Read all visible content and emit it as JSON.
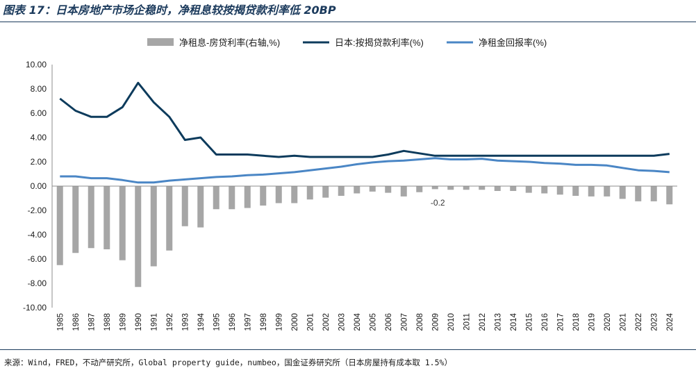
{
  "title": "图表 17：日本房地产市场企稳时，净租息较按揭贷款利率低 20BP",
  "source": "来源：Wind，FRED，不动产研究所，Global property guide，numbeo，国金证券研究所（日本房屋持有成本取 1.5%）",
  "colors": {
    "spread_bar": "#a6a6a6",
    "mortgage_line": "#0d3b5c",
    "yield_line": "#4a86c5",
    "rule": "#1b3a5c"
  },
  "chart_data": {
    "type": "bar+line",
    "categories": [
      "1985",
      "1986",
      "1987",
      "1988",
      "1989",
      "1990",
      "1991",
      "1992",
      "1993",
      "1994",
      "1995",
      "1996",
      "1997",
      "1998",
      "1999",
      "2000",
      "2001",
      "2002",
      "2003",
      "2004",
      "2005",
      "2006",
      "2007",
      "2008",
      "2009",
      "2010",
      "2011",
      "2012",
      "2013",
      "2014",
      "2015",
      "2016",
      "2017",
      "2018",
      "2019",
      "2020",
      "2021",
      "2022",
      "2023",
      "2024"
    ],
    "ylim": [
      -10,
      10
    ],
    "yticks": [
      "10.00",
      "8.00",
      "6.00",
      "4.00",
      "2.00",
      "0.00",
      "-2.00",
      "-4.00",
      "-6.00",
      "-8.00",
      "-10.00"
    ],
    "legend": [
      {
        "name": "净租息-房贷利率(右轴,%)",
        "kind": "bar"
      },
      {
        "name": "日本:按揭贷款利率(%)",
        "kind": "line"
      },
      {
        "name": "净租金回报率(%)",
        "kind": "line"
      }
    ],
    "series": [
      {
        "name": "净租息-房贷利率(右轴,%)",
        "type": "bar",
        "values": [
          -6.5,
          -5.5,
          -5.1,
          -5.2,
          -6.1,
          -8.3,
          -6.6,
          -5.3,
          -3.3,
          -3.4,
          -1.9,
          -1.9,
          -1.8,
          -1.6,
          -1.4,
          -1.4,
          -1.1,
          -0.95,
          -0.8,
          -0.6,
          -0.45,
          -0.55,
          -0.85,
          -0.5,
          -0.25,
          -0.3,
          -0.3,
          -0.3,
          -0.4,
          -0.4,
          -0.55,
          -0.6,
          -0.7,
          -0.8,
          -0.85,
          -0.85,
          -1.05,
          -1.25,
          -1.25,
          -1.5
        ]
      },
      {
        "name": "日本:按揭贷款利率(%)",
        "type": "line",
        "values": [
          7.2,
          6.2,
          5.7,
          5.7,
          6.5,
          8.5,
          6.9,
          5.7,
          3.8,
          4.0,
          2.6,
          2.6,
          2.6,
          2.5,
          2.4,
          2.5,
          2.4,
          2.4,
          2.4,
          2.4,
          2.4,
          2.6,
          2.9,
          2.7,
          2.5,
          2.5,
          2.5,
          2.5,
          2.5,
          2.5,
          2.5,
          2.5,
          2.5,
          2.5,
          2.5,
          2.5,
          2.5,
          2.5,
          2.5,
          2.65
        ]
      },
      {
        "name": "净租金回报率(%)",
        "type": "line",
        "values": [
          0.8,
          0.8,
          0.65,
          0.65,
          0.5,
          0.3,
          0.3,
          0.45,
          0.55,
          0.65,
          0.75,
          0.8,
          0.9,
          0.95,
          1.05,
          1.15,
          1.3,
          1.45,
          1.6,
          1.8,
          1.95,
          2.05,
          2.1,
          2.2,
          2.3,
          2.2,
          2.2,
          2.25,
          2.1,
          2.05,
          2.0,
          1.9,
          1.85,
          1.75,
          1.75,
          1.7,
          1.5,
          1.3,
          1.25,
          1.15
        ]
      }
    ],
    "annotations": [
      {
        "text": "-0.2",
        "category": "2009"
      }
    ]
  }
}
